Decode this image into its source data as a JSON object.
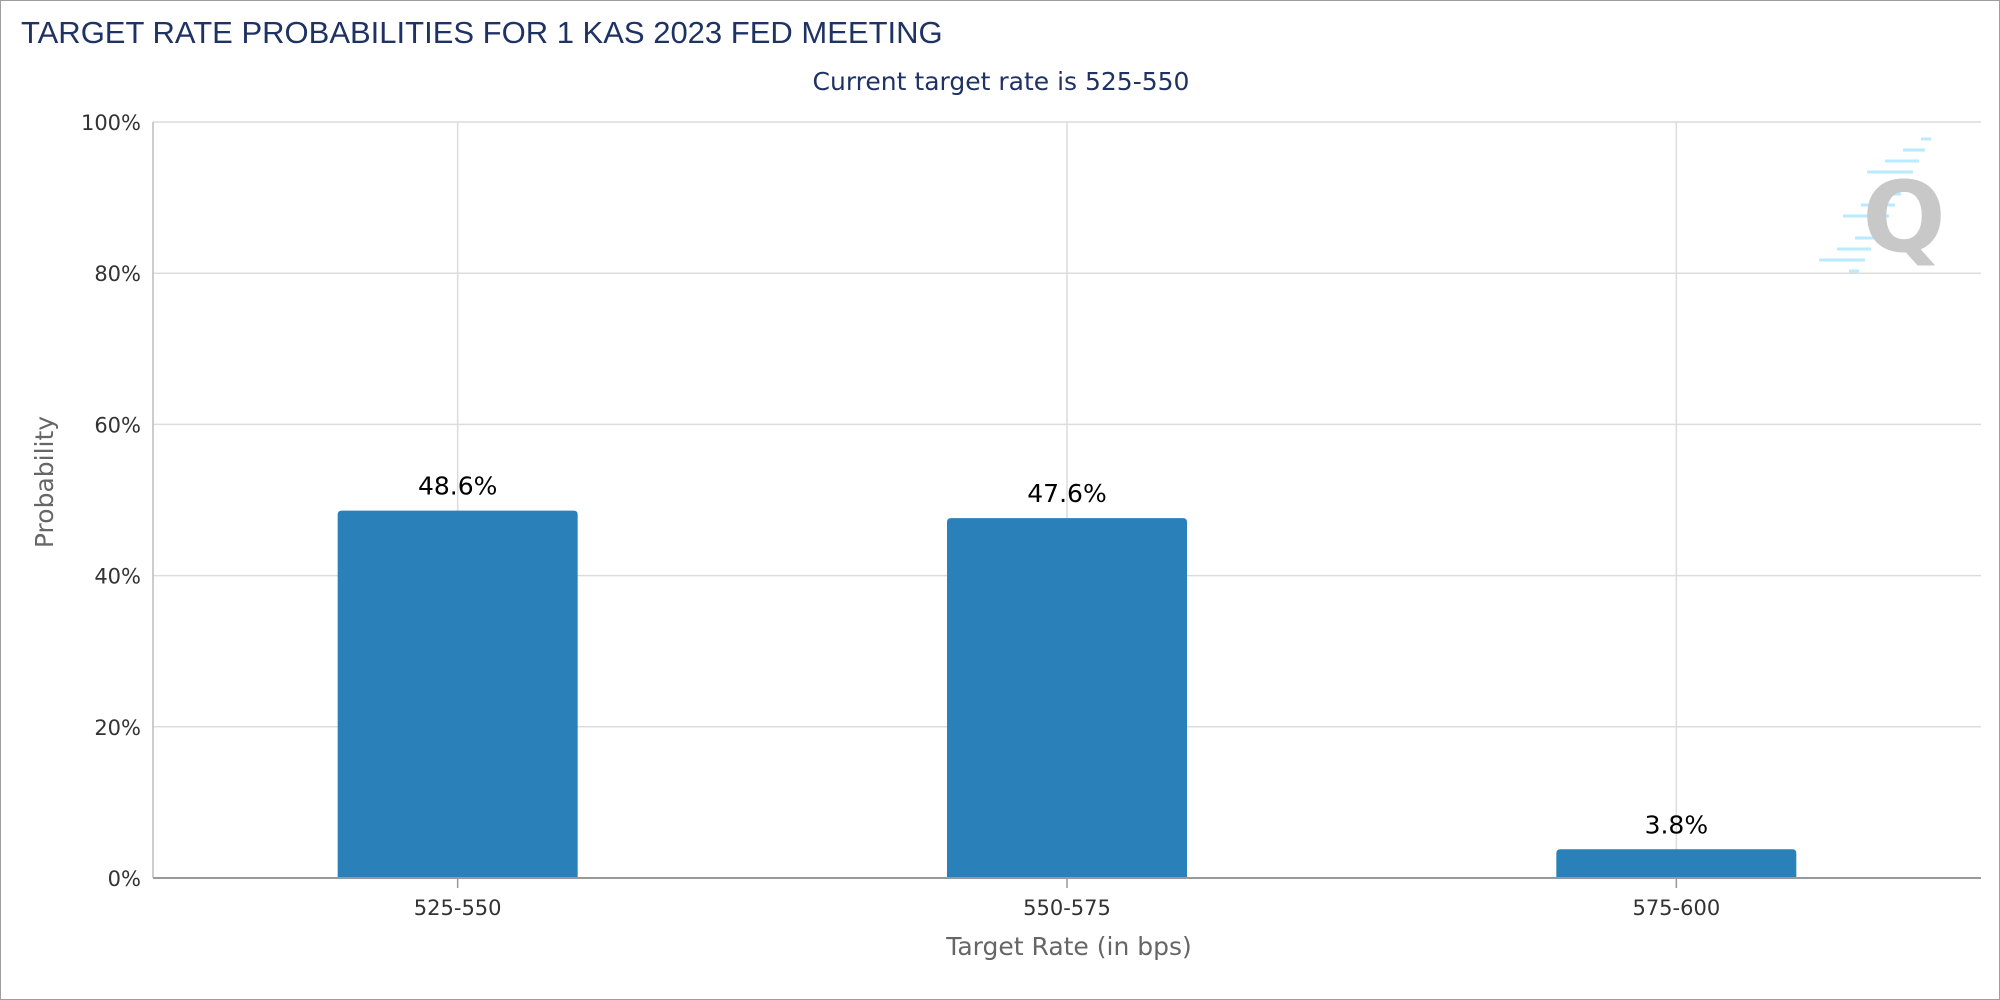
{
  "chart_data": {
    "type": "bar",
    "title": "TARGET RATE PROBABILITIES FOR 1 KAS 2023 FED MEETING",
    "subtitle": "Current target rate is 525-550",
    "xlabel": "Target Rate (in bps)",
    "ylabel": "Probability",
    "categories": [
      "525-550",
      "550-575",
      "575-600"
    ],
    "values": [
      48.6,
      47.6,
      3.8
    ],
    "value_labels": [
      "48.6%",
      "47.6%",
      "3.8%"
    ],
    "ylim": [
      0,
      100
    ],
    "yticks": [
      0,
      20,
      40,
      60,
      80,
      100
    ],
    "ytick_labels": [
      "0%",
      "20%",
      "40%",
      "60%",
      "80%",
      "100%"
    ],
    "grid": true,
    "legend": "none",
    "colors": {
      "bar": "#2a80b9",
      "title": "#1f3264",
      "axis_text": "#333333",
      "axis_title": "#666666",
      "grid": "#dcdcdc",
      "watermark": "#c8c8c8",
      "watermark_lines": "#7fd8ff"
    }
  },
  "watermark": {
    "icon": "q-logo-icon",
    "text": "Q"
  }
}
